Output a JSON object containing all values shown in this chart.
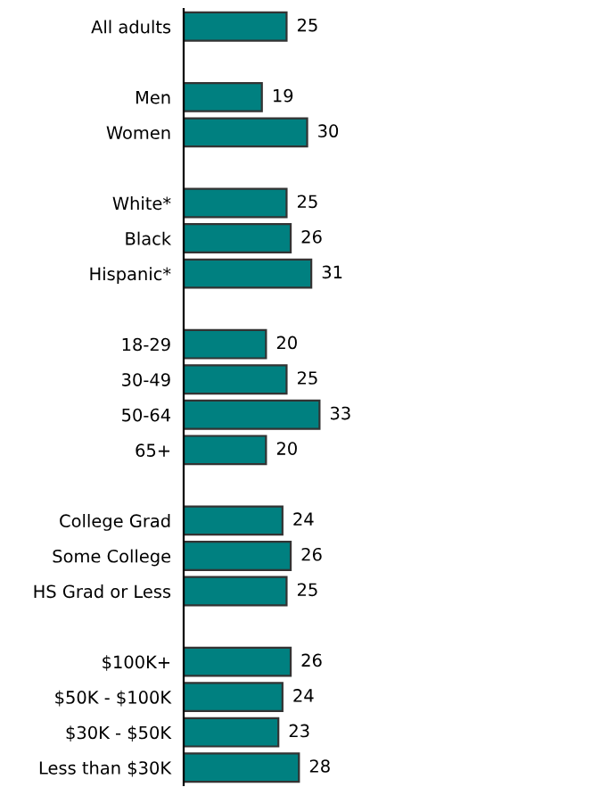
{
  "chart_data": {
    "type": "bar",
    "orientation": "horizontal",
    "categories": [
      "All adults",
      null,
      "Men",
      "Women",
      null,
      "White*",
      "Black",
      "Hispanic*",
      null,
      "18-29",
      "30-49",
      "50-64",
      "65+",
      null,
      "College Grad",
      "Some College",
      "HS Grad or Less",
      null,
      "$100K+",
      "$50K - $100K",
      "$30K - $50K",
      "Less than $30K"
    ],
    "values": [
      25,
      null,
      19,
      30,
      null,
      25,
      26,
      31,
      null,
      20,
      25,
      33,
      20,
      null,
      24,
      26,
      25,
      null,
      26,
      24,
      23,
      28
    ],
    "color": "#008080",
    "data_labels": true,
    "grid": false,
    "legend": false
  }
}
